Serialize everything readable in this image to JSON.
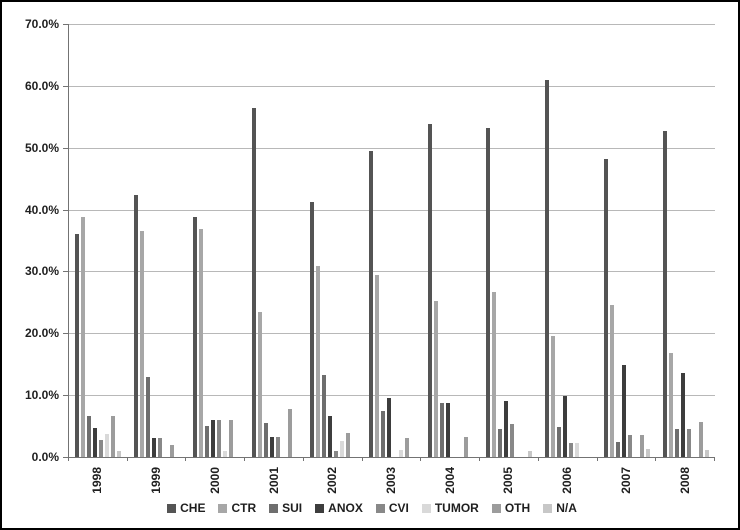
{
  "chart_data": {
    "type": "bar",
    "title": "",
    "xlabel": "",
    "ylabel": "",
    "value_format": "percent",
    "ylim": [
      0,
      70
    ],
    "ytick_step": 10,
    "ytick_labels_top_to_bottom": [
      "70.0%",
      "60.0%",
      "50.0%",
      "40.0%",
      "30.0%",
      "20.0%",
      "10.0%",
      "0.0%"
    ],
    "grid": true,
    "legend_position": "bottom",
    "categories": [
      "1998",
      "1999",
      "2000",
      "2001",
      "2002",
      "2003",
      "2004",
      "2005",
      "2006",
      "2007",
      "2008"
    ],
    "series": [
      {
        "name": "CHE",
        "color": "#545454",
        "values": [
          36.0,
          42.4,
          38.8,
          56.5,
          41.3,
          49.4,
          53.8,
          53.2,
          60.9,
          48.2,
          52.7
        ]
      },
      {
        "name": "CTR",
        "color": "#a7a7a7",
        "values": [
          38.8,
          36.6,
          36.8,
          23.4,
          30.8,
          29.5,
          25.2,
          26.6,
          19.5,
          24.6,
          16.8
        ]
      },
      {
        "name": "SUI",
        "color": "#6e6e6e",
        "values": [
          6.6,
          12.9,
          5.0,
          5.5,
          13.3,
          7.4,
          8.8,
          4.5,
          4.9,
          2.4,
          4.5
        ]
      },
      {
        "name": "ANOX",
        "color": "#3d3d3d",
        "values": [
          4.7,
          3.0,
          6.0,
          3.2,
          6.6,
          9.5,
          8.8,
          9.0,
          9.8,
          14.8,
          13.6
        ]
      },
      {
        "name": "CVI",
        "color": "#888888",
        "values": [
          2.7,
          3.0,
          6.0,
          3.2,
          1.0,
          0,
          0,
          5.3,
          2.3,
          3.5,
          4.5
        ]
      },
      {
        "name": "TUMOR",
        "color": "#d9d9d9",
        "values": [
          3.7,
          0,
          0.9,
          0,
          2.6,
          1.1,
          0,
          0,
          2.3,
          0,
          0
        ]
      },
      {
        "name": "OTH",
        "color": "#9c9c9c",
        "values": [
          6.6,
          2.0,
          6.0,
          7.7,
          3.9,
          3.1,
          3.2,
          0,
          0,
          3.5,
          5.6
        ]
      },
      {
        "name": "N/A",
        "color": "#c7c7c7",
        "values": [
          1.0,
          0,
          0,
          0,
          0,
          0,
          0,
          1.0,
          0,
          1.3,
          1.2
        ]
      }
    ]
  }
}
